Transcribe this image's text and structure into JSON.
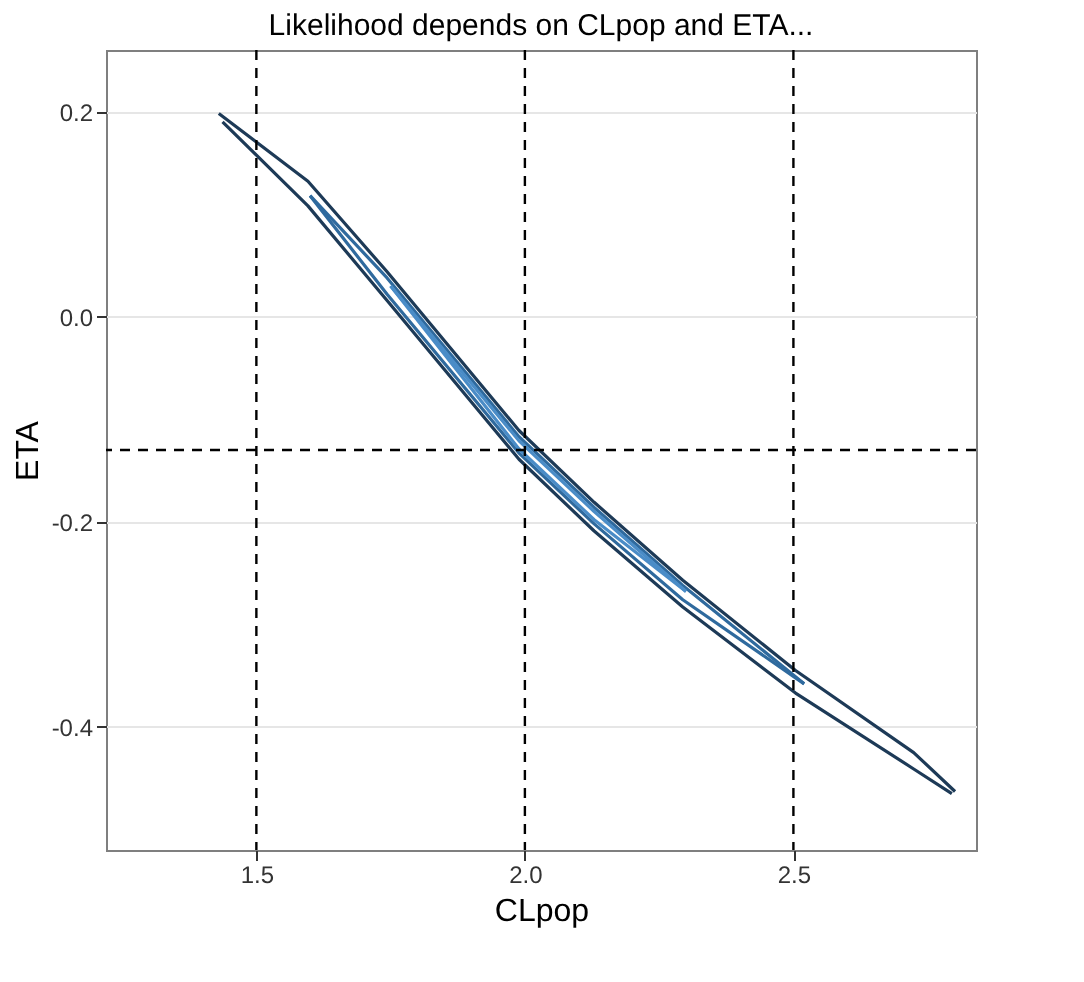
{
  "chart_data": {
    "type": "line",
    "title": "Likelihood depends on CLpop and ETA...",
    "xlabel": "CLpop",
    "ylabel": "ETA",
    "xlim": [
      1.22,
      2.84
    ],
    "ylim": [
      -0.52,
      0.26
    ],
    "xticks": [
      {
        "value": 1.5,
        "label": "1.5"
      },
      {
        "value": 2,
        "label": "2.0"
      },
      {
        "value": 2.5,
        "label": "2.5"
      }
    ],
    "yticks": [
      {
        "value": -0.4,
        "label": "-0.4"
      },
      {
        "value": -0.2,
        "label": "-0.2"
      },
      {
        "value": 0,
        "label": "0.0"
      },
      {
        "value": 0.2,
        "label": "0.2"
      }
    ],
    "grid": "y",
    "line_style": "solid",
    "marker": "none",
    "series": [
      {
        "color": "#1d3a57",
        "x": [
          1.43,
          1.596,
          1.743,
          1.989,
          2.129,
          2.294,
          2.504,
          2.724,
          2.801
        ],
        "values": [
          0.198,
          0.132,
          0.044,
          -0.111,
          -0.181,
          -0.257,
          -0.345,
          -0.425,
          -0.463
        ]
      },
      {
        "color": "#1d3a57",
        "x": [
          1.437,
          1.596,
          1.743,
          1.989,
          2.129,
          2.294,
          2.504,
          2.724,
          2.795
        ],
        "values": [
          0.19,
          0.108,
          0.016,
          -0.139,
          -0.209,
          -0.283,
          -0.367,
          -0.441,
          -0.465
        ]
      },
      {
        "color": "#2f6a9e",
        "x": [
          1.6,
          1.743,
          1.989,
          2.129,
          2.294,
          2.52
        ],
        "values": [
          0.118,
          0.038,
          -0.117,
          -0.186,
          -0.262,
          -0.358
        ]
      },
      {
        "color": "#2f6a9e",
        "x": [
          1.6,
          1.743,
          1.989,
          2.129,
          2.294,
          2.52
        ],
        "values": [
          0.118,
          0.022,
          -0.133,
          -0.202,
          -0.276,
          -0.358
        ]
      },
      {
        "color": "#4a8cc7",
        "x": [
          1.75,
          1.989,
          2.129,
          2.3
        ],
        "values": [
          0.03,
          -0.121,
          -0.19,
          -0.268
        ]
      },
      {
        "color": "#4a8cc7",
        "x": [
          1.75,
          1.989,
          2.129,
          2.3
        ],
        "values": [
          0.03,
          -0.129,
          -0.198,
          -0.268
        ]
      }
    ],
    "ref_lines": [
      {
        "axis": "x",
        "value": 1.5,
        "color": "#000000",
        "line_style": "dashed"
      },
      {
        "axis": "x",
        "value": 2.0,
        "color": "#000000",
        "line_style": "dashed"
      },
      {
        "axis": "x",
        "value": 2.5,
        "color": "#000000",
        "line_style": "dashed"
      },
      {
        "axis": "y",
        "value": -0.13,
        "color": "#000000",
        "line_style": "dashed"
      }
    ]
  }
}
